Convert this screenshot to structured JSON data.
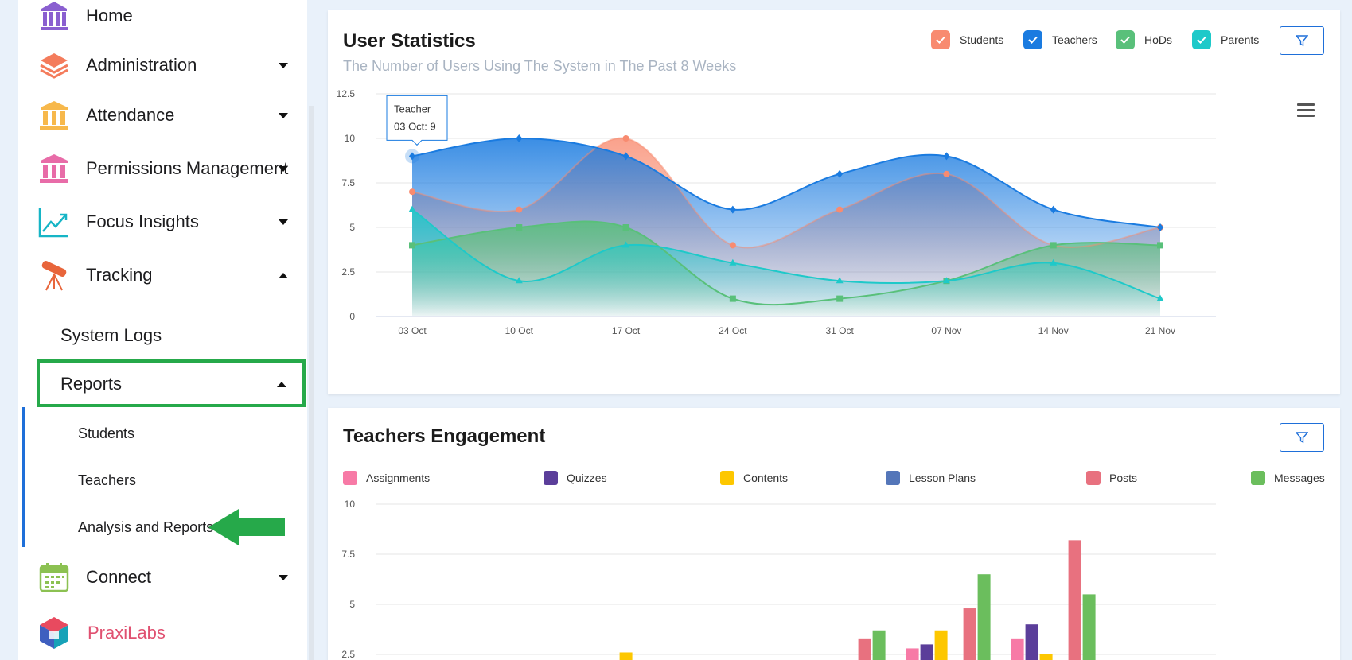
{
  "sidebar": {
    "items": [
      {
        "label": "Home",
        "icon": "building-icon",
        "color": "#8a5fd0"
      },
      {
        "label": "Administration",
        "icon": "layers-icon",
        "color": "#f47c5c"
      },
      {
        "label": "Attendance",
        "icon": "pillars-icon",
        "color": "#f7b84b"
      },
      {
        "label": "Permissions Management",
        "icon": "pillars-icon",
        "color": "#e86ca8"
      },
      {
        "label": "Focus Insights",
        "icon": "trend-icon",
        "color": "#16b5c6"
      },
      {
        "label": "Tracking",
        "icon": "telescope-icon",
        "color": "#e8653b"
      }
    ],
    "tracking_sub": {
      "system_logs": "System Logs",
      "reports": "Reports",
      "reports_sub": [
        "Students",
        "Teachers",
        "Analysis and Reports"
      ]
    },
    "connect": {
      "label": "Connect",
      "icon": "calendar-icon",
      "color": "#8cc152"
    },
    "praxilabs": {
      "label": "PraxiLabs",
      "icon": "cube-icon"
    }
  },
  "user_statistics": {
    "title": "User Statistics",
    "subtitle": "The Number of Users Using The System in The Past 8 Weeks",
    "legend": [
      {
        "label": "Students",
        "color": "#f88b70"
      },
      {
        "label": "Teachers",
        "color": "#1a7be0"
      },
      {
        "label": "HoDs",
        "color": "#59c07a"
      },
      {
        "label": "Parents",
        "color": "#1ec9c9"
      }
    ],
    "tooltip": {
      "title": "Teacher",
      "value": "03 Oct: 9"
    }
  },
  "teachers_engagement": {
    "title": "Teachers Engagement",
    "legend": [
      {
        "label": "Assignments",
        "color": "#f77aa6"
      },
      {
        "label": "Quizzes",
        "color": "#5b3e9a"
      },
      {
        "label": "Contents",
        "color": "#fdc700"
      },
      {
        "label": "Lesson Plans",
        "color": "#5476b9"
      },
      {
        "label": "Posts",
        "color": "#e8717f"
      },
      {
        "label": "Messages",
        "color": "#6bbe5d"
      }
    ]
  },
  "chart_data": [
    {
      "type": "area",
      "title": "User Statistics",
      "categories": [
        "03 Oct",
        "10 Oct",
        "17 Oct",
        "24 Oct",
        "31 Oct",
        "07 Nov",
        "14 Nov",
        "21 Nov"
      ],
      "ylim": [
        0,
        12.5
      ],
      "yticks": [
        "0",
        "2.5",
        "5",
        "7.5",
        "10",
        "12.5"
      ],
      "series": [
        {
          "name": "Students",
          "values": [
            7,
            6,
            10,
            4,
            6,
            8,
            4,
            5
          ]
        },
        {
          "name": "Teachers",
          "values": [
            9,
            10,
            9,
            6,
            8,
            9,
            6,
            5
          ]
        },
        {
          "name": "HoDs",
          "values": [
            4,
            5,
            5,
            1,
            1,
            2,
            4,
            4
          ]
        },
        {
          "name": "Parents",
          "values": [
            6,
            2,
            4,
            3,
            2,
            2,
            3,
            1
          ]
        }
      ]
    },
    {
      "type": "bar",
      "title": "Teachers Engagement",
      "ylim": [
        0,
        10
      ],
      "yticks": [
        "2.5",
        "5",
        "7.5",
        "10"
      ],
      "groups": 8,
      "series": [
        {
          "name": "Assignments",
          "values": [
            0,
            0,
            0,
            0,
            0,
            2.8,
            3.3,
            0
          ]
        },
        {
          "name": "Quizzes",
          "values": [
            0,
            0,
            0,
            0,
            0,
            3.0,
            4.0,
            0
          ]
        },
        {
          "name": "Contents",
          "values": [
            0,
            0,
            2.6,
            0,
            0,
            3.7,
            2.5,
            0
          ]
        },
        {
          "name": "Lesson Plans",
          "values": [
            0,
            0,
            0,
            0,
            0,
            0,
            0,
            0
          ]
        },
        {
          "name": "Posts",
          "values": [
            0,
            0,
            0,
            0,
            3.3,
            4.8,
            8.2,
            0
          ]
        },
        {
          "name": "Messages",
          "values": [
            0,
            0,
            0,
            0,
            3.7,
            6.5,
            5.5,
            0
          ]
        }
      ]
    }
  ]
}
